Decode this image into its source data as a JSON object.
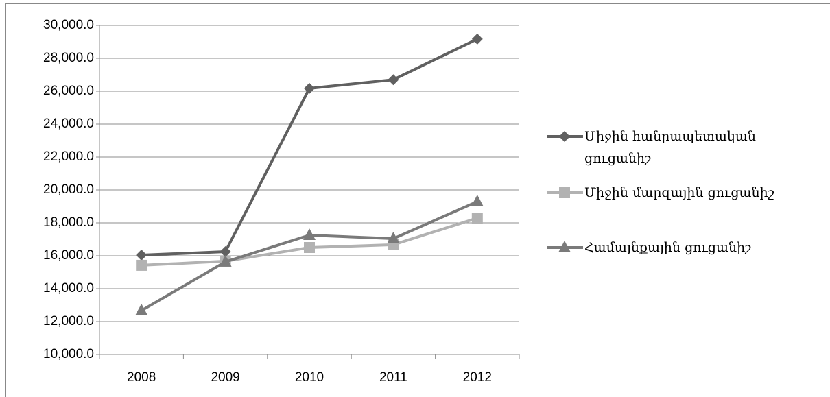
{
  "chart_data": {
    "type": "line",
    "categories": [
      "2008",
      "2009",
      "2010",
      "2011",
      "2012"
    ],
    "series": [
      {
        "name": "Միջին հանրապետական ցուցանիշ",
        "color": "#606060",
        "marker": "diamond",
        "values": [
          16040,
          16250,
          26170,
          26700,
          29170
        ]
      },
      {
        "name": "Միջին մարզային ցուցանիշ",
        "color": "#b2b2b2",
        "marker": "square",
        "values": [
          15420,
          15670,
          16500,
          16670,
          18290
        ]
      },
      {
        "name": "Համայնքային ցուցանիշ",
        "color": "#7a7a7a",
        "marker": "triangle",
        "values": [
          12670,
          15630,
          17250,
          17040,
          19290
        ]
      }
    ],
    "ylim": [
      10000,
      30000
    ],
    "yticks": [
      {
        "value": 10000,
        "label": "10,000.0"
      },
      {
        "value": 12000,
        "label": "12,000.0"
      },
      {
        "value": 14000,
        "label": "14,000.0"
      },
      {
        "value": 16000,
        "label": "16,000.0"
      },
      {
        "value": 18000,
        "label": "18,000.0"
      },
      {
        "value": 20000,
        "label": "20,000.0"
      },
      {
        "value": 22000,
        "label": "22,000.0"
      },
      {
        "value": 24000,
        "label": "24,000.0"
      },
      {
        "value": 26000,
        "label": "26,000.0"
      },
      {
        "value": 28000,
        "label": "28,000.0"
      },
      {
        "value": 30000,
        "label": "30,000.0"
      }
    ],
    "grid": true,
    "legend": "right"
  }
}
